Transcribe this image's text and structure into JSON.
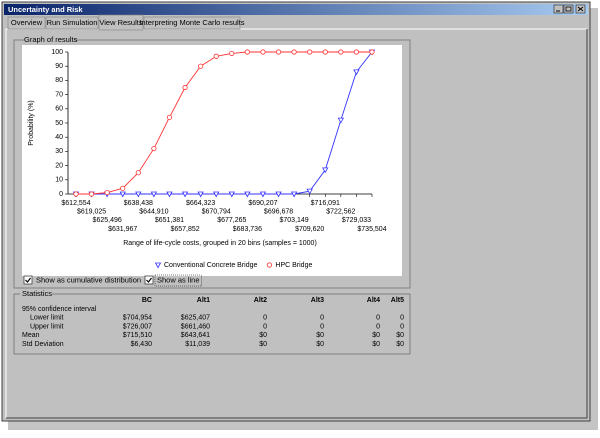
{
  "window_title": "Uncertainty and Risk",
  "tabs": [
    "Overview",
    "Run Simulation",
    "View Results",
    "Interpreting Monte Carlo results"
  ],
  "graph_group": "Graph of results",
  "chart_data": {
    "type": "line",
    "xlabel": "Range of life-cycle costs, grouped in 20 bins (samples = 1000)",
    "ylabel": "Probability (%)",
    "categories": [
      "$612,554",
      "$619,025",
      "$625,496",
      "$631,967",
      "$638,438",
      "$644,910",
      "$651,381",
      "$657,852",
      "$664,323",
      "$670,794",
      "$677,265",
      "$683,736",
      "$690,207",
      "$696,678",
      "$703,149",
      "$709,620",
      "$716,091",
      "$722,562",
      "$729,033",
      "$735,504"
    ],
    "series": [
      {
        "name": "Conventional Concrete Bridge",
        "color": "#3333ff",
        "marker": "triangle",
        "values": [
          0,
          0,
          0,
          0,
          0,
          0,
          0,
          0,
          0,
          0,
          0,
          0,
          0,
          0,
          0,
          2,
          17,
          52,
          86,
          100
        ]
      },
      {
        "name": "HPC Bridge",
        "color": "#ff3333",
        "marker": "circle",
        "values": [
          0,
          0,
          1,
          4,
          15,
          32,
          54,
          75,
          90,
          97,
          99,
          100,
          100,
          100,
          100,
          100,
          100,
          100,
          100,
          100
        ]
      }
    ],
    "ylim": [
      0,
      100
    ],
    "yticks": [
      0,
      10,
      20,
      30,
      40,
      50,
      60,
      70,
      80,
      90,
      100
    ]
  },
  "checkboxes": [
    "Show as cumulative distribution",
    "Show as line"
  ],
  "statistics": {
    "title": "Statistics",
    "columns": [
      "BC",
      "Alt1",
      "Alt2",
      "Alt3",
      "Alt4",
      "Alt5"
    ],
    "rows": [
      {
        "label": "95% confidence interval",
        "values": []
      },
      {
        "label": "Lower limit",
        "values": [
          "$704,954",
          "$625,407",
          "0",
          "0",
          "0",
          "0"
        ]
      },
      {
        "label": "Upper limit",
        "values": [
          "$726,007",
          "$661,460",
          "0",
          "0",
          "0",
          "0"
        ]
      },
      {
        "label": "Mean",
        "values": [
          "$715,510",
          "$643,641",
          "$0",
          "$0",
          "$0",
          "$0"
        ]
      },
      {
        "label": "Std Deviation",
        "values": [
          "$6,430",
          "$11,039",
          "$0",
          "$0",
          "$0",
          "$0"
        ]
      }
    ]
  }
}
